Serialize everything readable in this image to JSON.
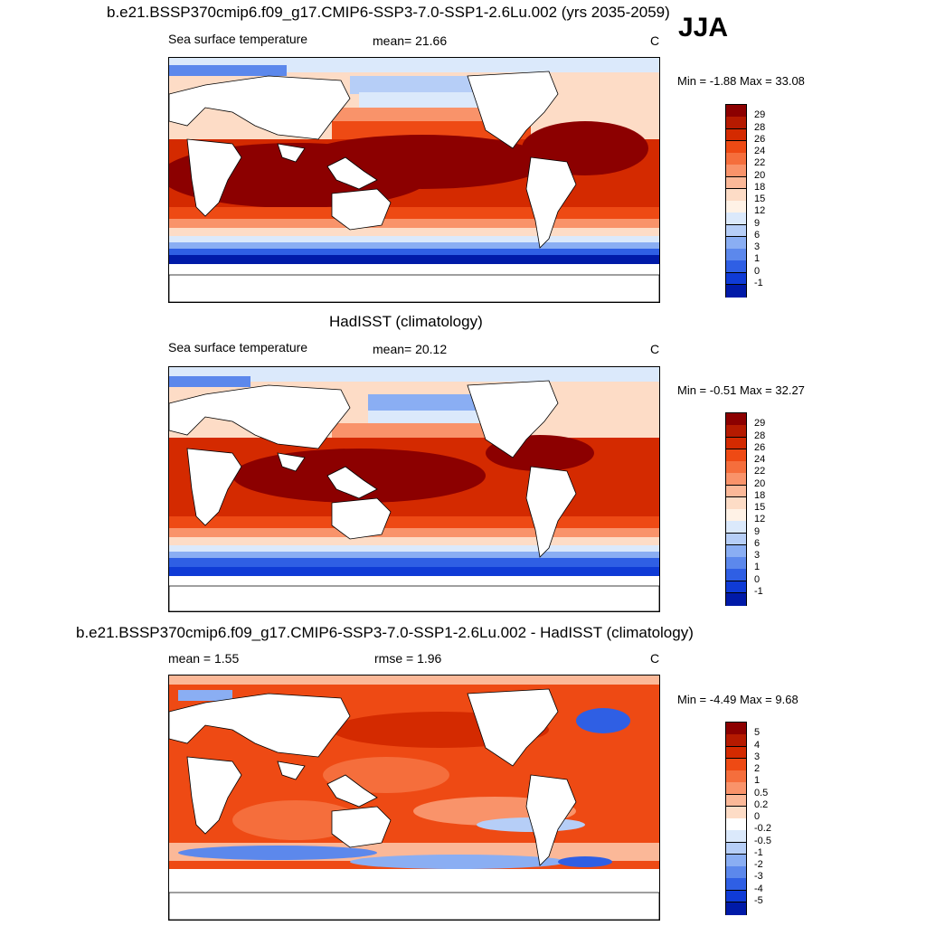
{
  "season": "JJA",
  "panels": [
    {
      "title": "b.e21.BSSP370cmip6.f09_g17.CMIP6-SSP3-7.0-SSP1-2.6Lu.002 (yrs 2035-2059)",
      "left_label": "Sea surface temperature",
      "center_label": "mean=  21.66",
      "units": "C",
      "minmax": "Min =  -1.88 Max =  33.08",
      "colorbar": {
        "labels": [
          "29",
          "28",
          "26",
          "24",
          "22",
          "20",
          "18",
          "15",
          "12",
          "9",
          "6",
          "3",
          "1",
          "0",
          "-1"
        ],
        "colors": [
          "#8c0000",
          "#b51a00",
          "#d42a00",
          "#ee4a14",
          "#f56e3c",
          "#f9936a",
          "#fbb898",
          "#fddcc6",
          "#fff2e6",
          "#dbe9fb",
          "#b6cef7",
          "#8aaef3",
          "#5c88ec",
          "#2f5fe4",
          "#0f3bd6",
          "#001aa8"
        ]
      }
    },
    {
      "title": "HadISST (climatology)",
      "left_label": "Sea surface temperature",
      "center_label": "mean=  20.12",
      "units": "C",
      "minmax": "Min =  -0.51 Max =  32.27",
      "colorbar": {
        "labels": [
          "29",
          "28",
          "26",
          "24",
          "22",
          "20",
          "18",
          "15",
          "12",
          "9",
          "6",
          "3",
          "1",
          "0",
          "-1"
        ],
        "colors": [
          "#8c0000",
          "#b51a00",
          "#d42a00",
          "#ee4a14",
          "#f56e3c",
          "#f9936a",
          "#fbb898",
          "#fddcc6",
          "#fff2e6",
          "#dbe9fb",
          "#b6cef7",
          "#8aaef3",
          "#5c88ec",
          "#2f5fe4",
          "#0f3bd6",
          "#001aa8"
        ]
      }
    },
    {
      "title": "b.e21.BSSP370cmip6.f09_g17.CMIP6-SSP3-7.0-SSP1-2.6Lu.002 - HadISST (climatology)",
      "left_label": "mean =   1.55",
      "center_label": "rmse =   1.96",
      "units": "C",
      "minmax": "Min =  -4.49 Max =   9.68",
      "colorbar": {
        "labels": [
          "5",
          "4",
          "3",
          "2",
          "1",
          "0.5",
          "0.2",
          "0",
          "-0.2",
          "-0.5",
          "-1",
          "-2",
          "-3",
          "-4",
          "-5"
        ],
        "colors": [
          "#8c0000",
          "#b51a00",
          "#d42a00",
          "#ee4a14",
          "#f56e3c",
          "#f9936a",
          "#fbb898",
          "#fddcc6",
          "#ffffff",
          "#dbe9fb",
          "#b6cef7",
          "#8aaef3",
          "#5c88ec",
          "#2f5fe4",
          "#0f3bd6",
          "#001aa8"
        ]
      }
    }
  ]
}
